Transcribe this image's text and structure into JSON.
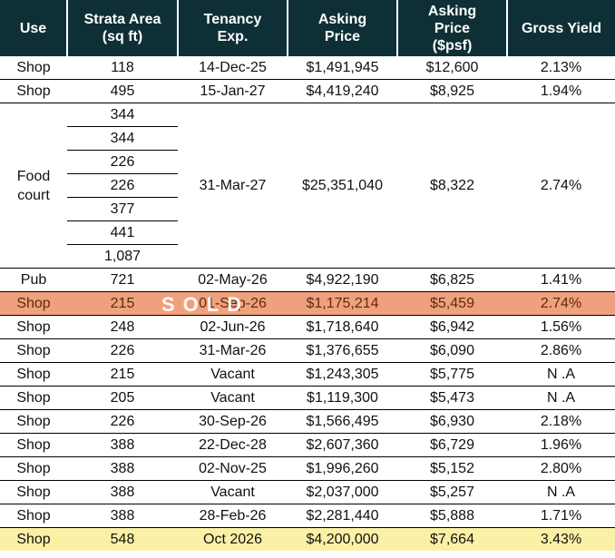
{
  "header": {
    "use": "Use",
    "area_line1": "Strata Area",
    "area_line2": "(sq ft)",
    "tenancy_line1": "Tenancy",
    "tenancy_line2": "Exp.",
    "price_line1": "Asking",
    "price_line2": "Price",
    "psf_line1": "Asking",
    "psf_line2": "Price",
    "psf_line3": "($psf)",
    "yield": "Gross Yield"
  },
  "rows_top": [
    {
      "use": "Shop",
      "area": "118",
      "tenancy": "14-Dec-25",
      "price": "$1,491,945",
      "psf": "$12,600",
      "yield": "2.13%"
    },
    {
      "use": "Shop",
      "area": "495",
      "tenancy": "15-Jan-27",
      "price": "$4,419,240",
      "psf": "$8,925",
      "yield": "1.94%"
    }
  ],
  "food_court": {
    "use_line1": "Food",
    "use_line2": "court",
    "areas": [
      "344",
      "344",
      "226",
      "226",
      "377",
      "441",
      "1,087"
    ],
    "tenancy": "31-Mar-27",
    "price": "$25,351,040",
    "psf": "$8,322",
    "yield": "2.74%"
  },
  "pub": {
    "use": "Pub",
    "area": "721",
    "tenancy": "02-May-26",
    "price": "$4,922,190",
    "psf": "$6,825",
    "yield": "1.41%"
  },
  "sold_row": {
    "use": "Shop",
    "area": "215",
    "tenancy": "01-Sep-26",
    "price": "$1,175,214",
    "psf": "$5,459",
    "yield": "2.74%",
    "stamp": "SOLD"
  },
  "rows_bottom": [
    {
      "use": "Shop",
      "area": "248",
      "tenancy": "02-Jun-26",
      "price": "$1,718,640",
      "psf": "$6,942",
      "yield": "1.56%"
    },
    {
      "use": "Shop",
      "area": "226",
      "tenancy": "31-Mar-26",
      "price": "$1,376,655",
      "psf": "$6,090",
      "yield": "2.86%"
    },
    {
      "use": "Shop",
      "area": "215",
      "tenancy": "Vacant",
      "price": "$1,243,305",
      "psf": "$5,775",
      "yield": "N .A"
    },
    {
      "use": "Shop",
      "area": "205",
      "tenancy": "Vacant",
      "price": "$1,119,300",
      "psf": "$5,473",
      "yield": "N .A"
    },
    {
      "use": "Shop",
      "area": "226",
      "tenancy": "30-Sep-26",
      "price": "$1,566,495",
      "psf": "$6,930",
      "yield": "2.18%"
    },
    {
      "use": "Shop",
      "area": "388",
      "tenancy": "22-Dec-28",
      "price": "$2,607,360",
      "psf": "$6,729",
      "yield": "1.96%"
    },
    {
      "use": "Shop",
      "area": "388",
      "tenancy": "02-Nov-25",
      "price": "$1,996,260",
      "psf": "$5,152",
      "yield": "2.80%"
    },
    {
      "use": "Shop",
      "area": "388",
      "tenancy": "Vacant",
      "price": "$2,037,000",
      "psf": "$5,257",
      "yield": "N .A"
    },
    {
      "use": "Shop",
      "area": "388",
      "tenancy": "28-Feb-26",
      "price": "$2,281,440",
      "psf": "$5,888",
      "yield": "1.71%"
    }
  ],
  "highlight_row": {
    "use": "Shop",
    "area": "548",
    "tenancy": "Oct 2026",
    "price": "$4,200,000",
    "psf": "$7,664",
    "yield": "3.43%"
  },
  "colors": {
    "header_bg": "#0f2f36",
    "sold_bg": "#f0a07c",
    "highlight_bg": "#fbf1a6"
  }
}
